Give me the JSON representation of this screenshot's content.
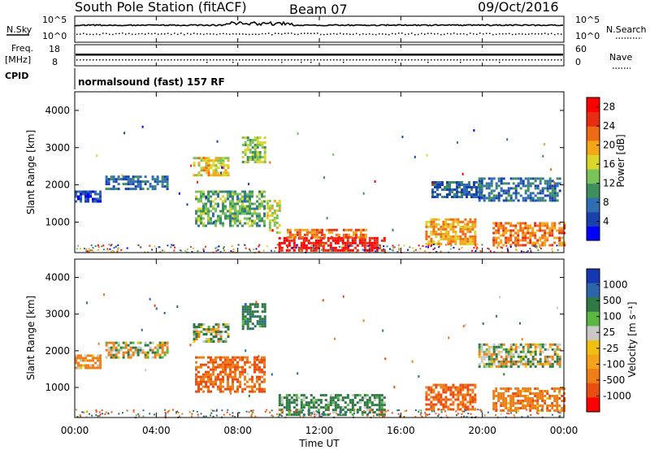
{
  "header": {
    "station": "South Pole Station (fitACF)",
    "beam": "Beam 07",
    "date": "09/Oct/2016",
    "cpid_label": "CPID",
    "cpid_value": "normalsound (fast) 157 RF"
  },
  "strips": {
    "nsky": {
      "label": "N.Sky",
      "ticks": [
        "10^5",
        "10^0"
      ]
    },
    "nsearch": {
      "label": "N.Search",
      "ticks": [
        "10^5",
        "10^0"
      ]
    },
    "freq": {
      "label_line1": "Freq.",
      "label_line2": "[MHz]",
      "ticks": [
        "18",
        "8"
      ]
    },
    "nave": {
      "label": "Nave",
      "ticks": [
        "60",
        "0"
      ]
    }
  },
  "colors": {
    "power": [
      "#0000ff",
      "#1a40ac",
      "#2f6eb0",
      "#3e8f5e",
      "#79c35a",
      "#dad62a",
      "#f3a616",
      "#ef6a15",
      "#e82d12",
      "#ff0000"
    ],
    "velocity": [
      "#1537b2",
      "#2c65a8",
      "#2f7a44",
      "#5ab742",
      "#c8c8c8",
      "#f0c010",
      "#f6a21a",
      "#ef7e17",
      "#ea4d12",
      "#ff0000"
    ]
  },
  "chart_data": [
    {
      "type": "heatmap",
      "panel": "power",
      "ylabel": "Slant Range [km]",
      "ylim": [
        180,
        4500
      ],
      "yticks": [
        "1000",
        "2000",
        "3000",
        "4000"
      ],
      "xlim": [
        "00:00",
        "24:00"
      ],
      "xticks": [
        "00:00",
        "04:00",
        "08:00",
        "12:00",
        "16:00",
        "20:00",
        "00:00"
      ],
      "colorbar": {
        "label": "Power [dB]",
        "ticks": [
          "4",
          "8",
          "12",
          "16",
          "20",
          "24",
          "28"
        ],
        "range": [
          0,
          30
        ]
      },
      "series": [
        {
          "t0": 0.0,
          "t1": 1.2,
          "r0": 1550,
          "r1": 1850,
          "value": 5
        },
        {
          "t0": 1.5,
          "t1": 4.5,
          "r0": 1900,
          "r1": 2250,
          "value": 7
        },
        {
          "t0": 5.8,
          "t1": 7.5,
          "r0": 2250,
          "r1": 2750,
          "value": 18
        },
        {
          "t0": 5.9,
          "t1": 9.3,
          "r0": 900,
          "r1": 1850,
          "value": 12
        },
        {
          "t0": 8.2,
          "t1": 9.3,
          "r0": 2600,
          "r1": 3300,
          "value": 14
        },
        {
          "t0": 9.4,
          "t1": 10.0,
          "r0": 700,
          "r1": 1600,
          "value": 16
        },
        {
          "t0": 10.0,
          "t1": 15.2,
          "r0": 250,
          "r1": 600,
          "value": 28
        },
        {
          "t0": 10.4,
          "t1": 14.3,
          "r0": 600,
          "r1": 820,
          "value": 22
        },
        {
          "t0": 17.2,
          "t1": 19.6,
          "r0": 400,
          "r1": 1100,
          "value": 20
        },
        {
          "t0": 17.5,
          "t1": 20.0,
          "r0": 1700,
          "r1": 2100,
          "value": 7
        },
        {
          "t0": 19.8,
          "t1": 23.8,
          "r0": 1550,
          "r1": 2200,
          "value": 8
        },
        {
          "t0": 20.5,
          "t1": 24.0,
          "r0": 350,
          "r1": 1000,
          "value": 22
        }
      ]
    },
    {
      "type": "heatmap",
      "panel": "velocity",
      "ylabel": "Slant Range [km]",
      "ylim": [
        180,
        4500
      ],
      "yticks": [
        "1000",
        "2000",
        "3000",
        "4000"
      ],
      "xlim": [
        "00:00",
        "24:00"
      ],
      "xticks": [
        "00:00",
        "04:00",
        "08:00",
        "12:00",
        "16:00",
        "20:00",
        "00:00"
      ],
      "xlabel": "Time UT",
      "colorbar": {
        "label": "Velocity [m s⁻¹]",
        "ticks": [
          "1000",
          "500",
          "100",
          "25",
          "-25",
          "-100",
          "-500",
          "-1000"
        ],
        "range": [
          -1000,
          1000
        ]
      },
      "series": [
        {
          "t0": 0.0,
          "t1": 1.2,
          "r0": 1550,
          "r1": 1900,
          "value": -150
        },
        {
          "t0": 1.5,
          "t1": 4.5,
          "r0": 1850,
          "r1": 2250,
          "value": 0
        },
        {
          "t0": 5.8,
          "t1": 7.5,
          "r0": 2250,
          "r1": 2750,
          "value": 50
        },
        {
          "t0": 5.9,
          "t1": 9.3,
          "r0": 900,
          "r1": 1850,
          "value": -300
        },
        {
          "t0": 8.2,
          "t1": 9.3,
          "r0": 2600,
          "r1": 3300,
          "value": 200
        },
        {
          "t0": 10.0,
          "t1": 15.2,
          "r0": 250,
          "r1": 820,
          "value": 150
        },
        {
          "t0": 17.2,
          "t1": 19.6,
          "r0": 400,
          "r1": 1100,
          "value": -300
        },
        {
          "t0": 19.8,
          "t1": 23.8,
          "r0": 1550,
          "r1": 2200,
          "value": 0
        },
        {
          "t0": 20.5,
          "t1": 24.0,
          "r0": 350,
          "r1": 1000,
          "value": -200
        }
      ]
    }
  ]
}
